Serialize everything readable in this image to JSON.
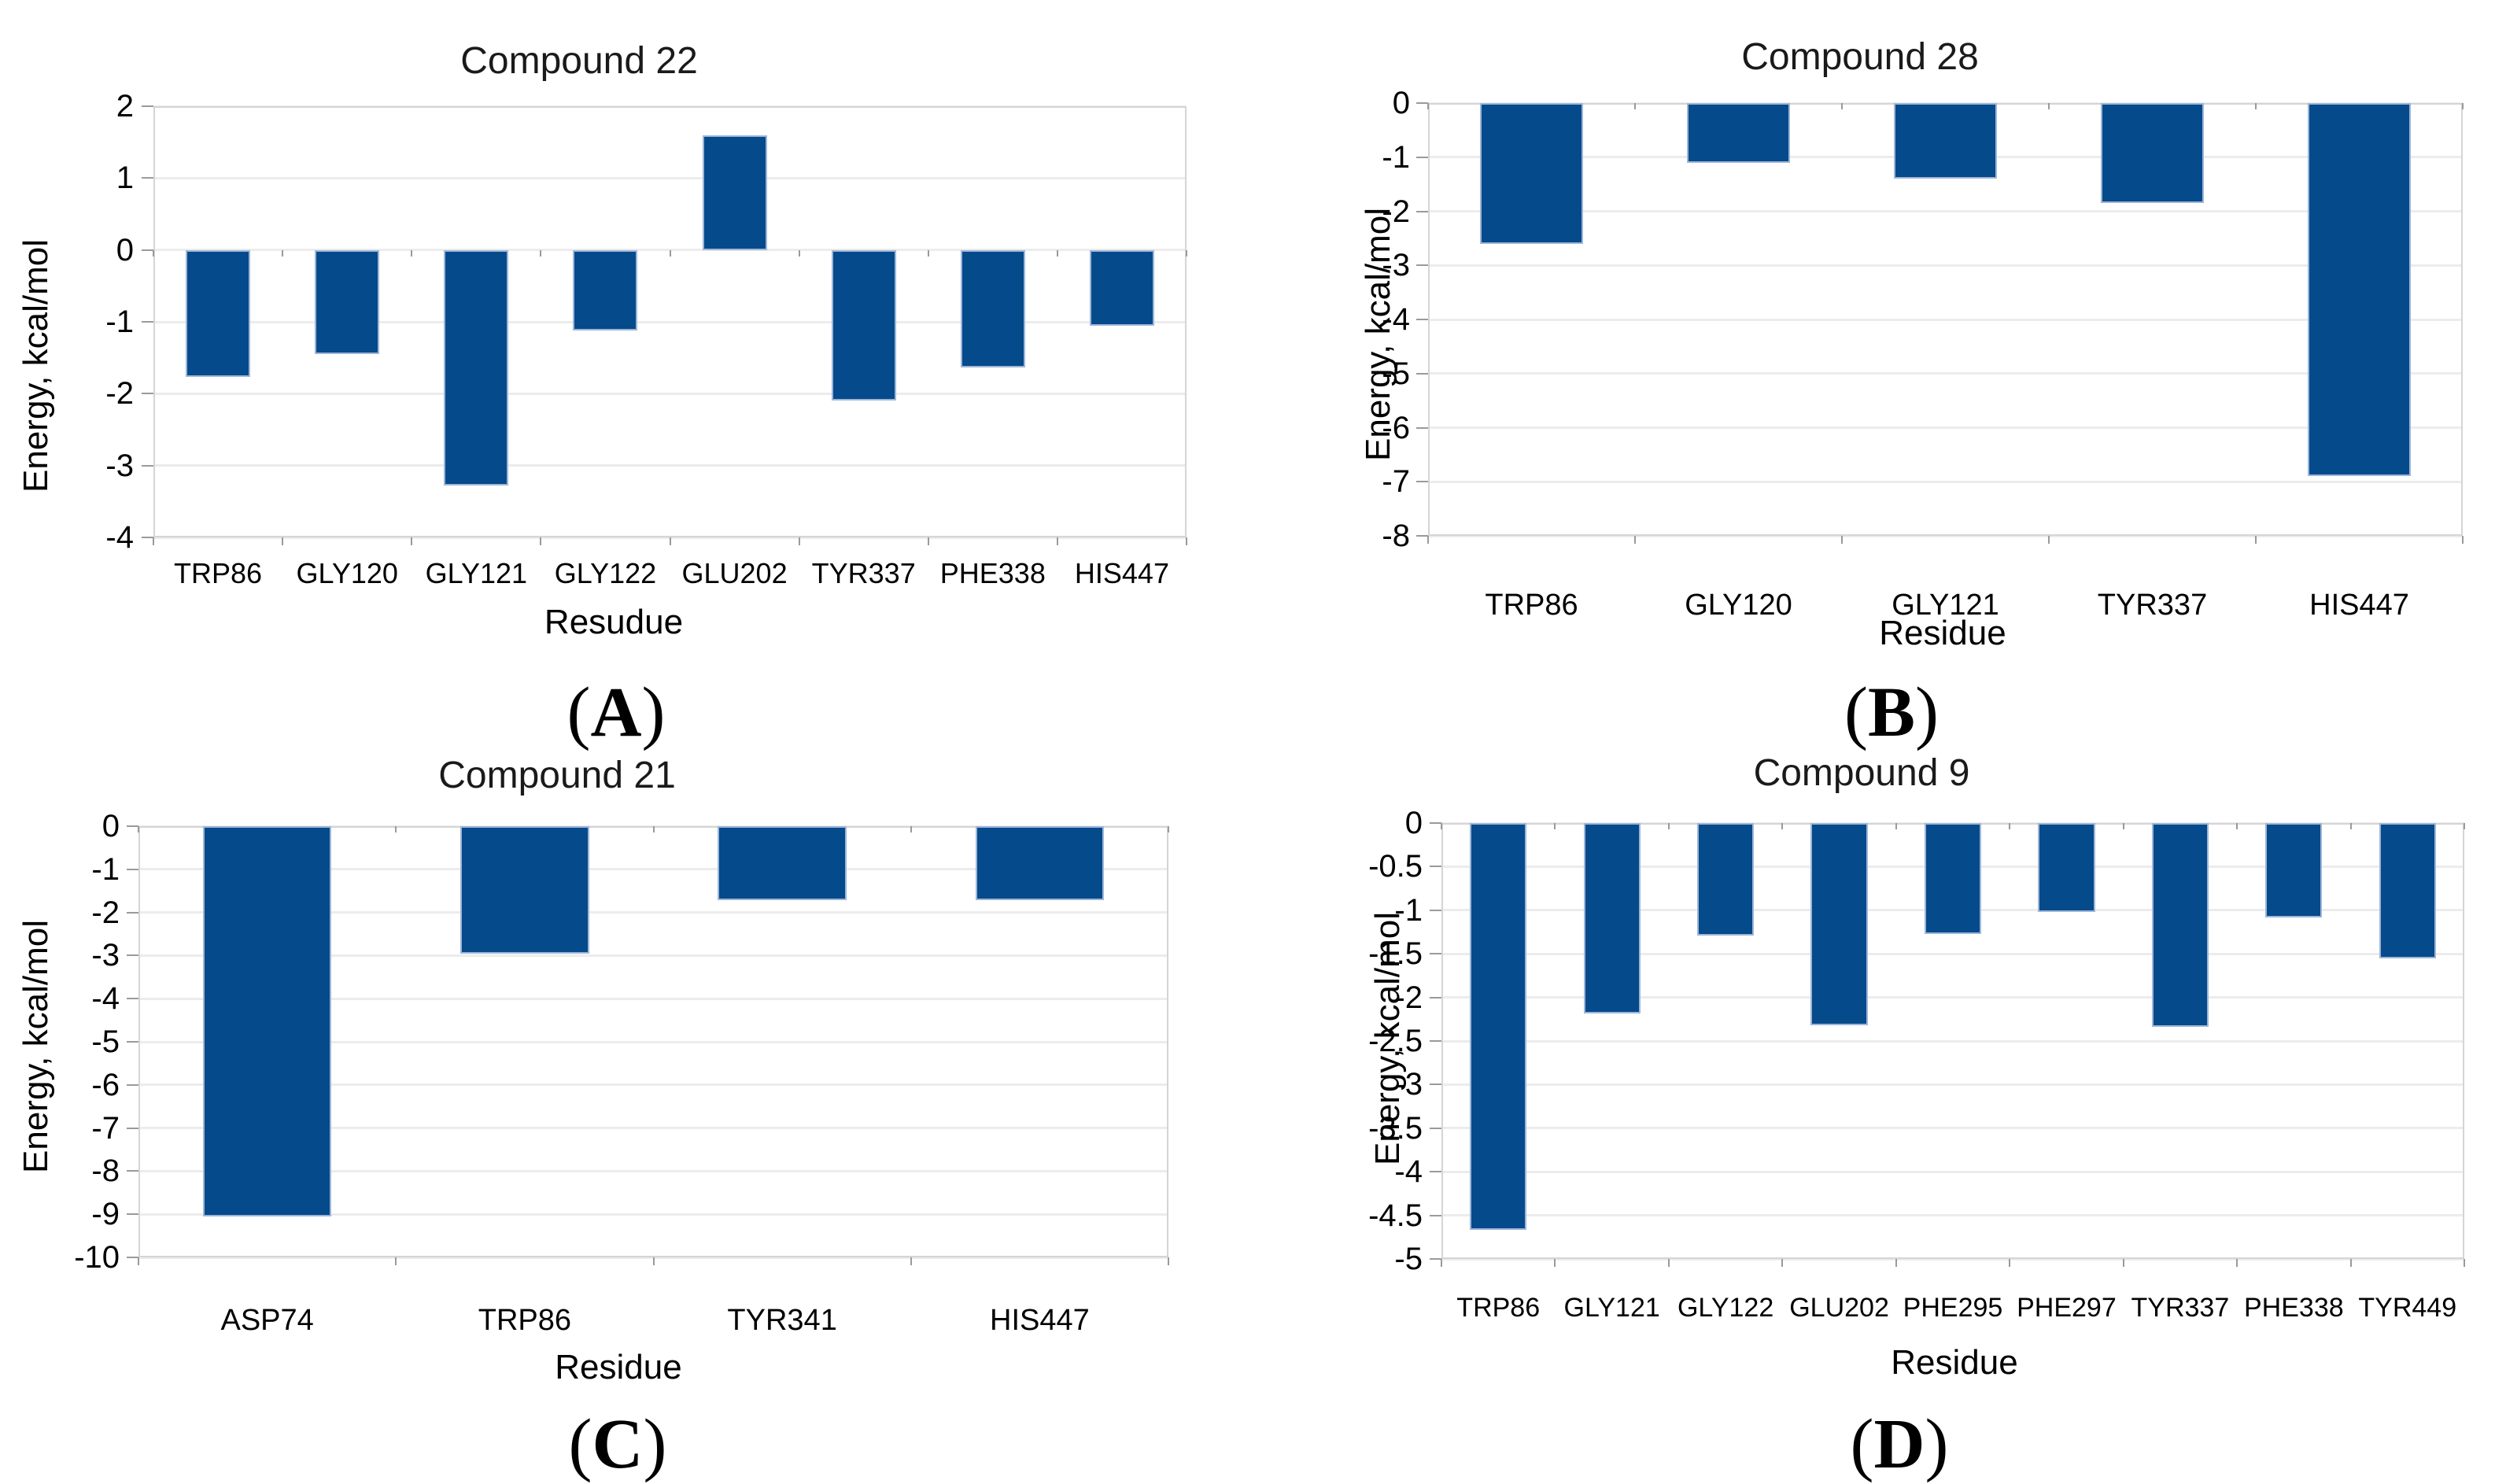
{
  "figure": {
    "background": "#ffffff"
  },
  "colors": {
    "bar_fill": "#054a8b",
    "bar_edge": "#9db6d8",
    "gridline": "#ececec",
    "plot_border": "#d5d5d5",
    "tick_mark": "#9a9a9a",
    "text": "#000000"
  },
  "chart_data": [
    {
      "type": "bar",
      "panel_label": {
        "open": "(",
        "letter": "A",
        "close": ")"
      },
      "title": "Compound 22",
      "xlabel": "Resudue",
      "ylabel": "Energy, kcal/mol",
      "categories": [
        "TRP86",
        "GLY120",
        "GLY121",
        "GLY122",
        "GLU202",
        "TYR337",
        "PHE338",
        "HIS447"
      ],
      "values": [
        -1.77,
        -1.45,
        -3.28,
        -1.12,
        1.6,
        -2.1,
        -1.63,
        -1.06
      ],
      "ylim": [
        2,
        -4
      ],
      "yticks": [
        2,
        1,
        0,
        -1,
        -2,
        -3,
        -4
      ],
      "grid": true,
      "legend": "none"
    },
    {
      "type": "bar",
      "panel_label": {
        "open": "(",
        "letter": "B",
        "close": ")"
      },
      "title": "Compound 28",
      "xlabel": "Residue",
      "ylabel": "Energy, kcal/mol",
      "categories": [
        "TRP86",
        "GLY120",
        "GLY121",
        "TYR337",
        "HIS447"
      ],
      "values": [
        -2.6,
        -1.1,
        -1.4,
        -1.85,
        -6.9
      ],
      "ylim": [
        0,
        -8
      ],
      "yticks": [
        0,
        -1,
        -2,
        -3,
        -4,
        -5,
        -6,
        -7,
        -8
      ],
      "grid": true,
      "legend": "none"
    },
    {
      "type": "bar",
      "panel_label": {
        "open": "(",
        "letter": "C",
        "close": ")"
      },
      "title": "Compound 21",
      "xlabel": "Residue",
      "ylabel": "Energy, kcal/mol",
      "categories": [
        "ASP74",
        "TRP86",
        "TYR341",
        "HIS447"
      ],
      "values": [
        -9.05,
        -2.95,
        -1.72,
        -1.72
      ],
      "ylim": [
        0,
        -10
      ],
      "yticks": [
        0,
        -1,
        -2,
        -3,
        -4,
        -5,
        -6,
        -7,
        -8,
        -9,
        -10
      ],
      "grid": true,
      "legend": "none"
    },
    {
      "type": "bar",
      "panel_label": {
        "open": "(",
        "letter": "D",
        "close": ")"
      },
      "title": "Compound 9",
      "xlabel": "Residue",
      "ylabel": "Energy, kcal/mol",
      "categories": [
        "TRP86",
        "GLY121",
        "GLY122",
        "GLU202",
        "PHE295",
        "PHE297",
        "TYR337",
        "PHE338",
        "TYR449"
      ],
      "values": [
        -4.67,
        -2.18,
        -1.29,
        -2.32,
        -1.27,
        -1.02,
        -2.34,
        -1.08,
        -1.55
      ],
      "ylim": [
        0,
        -5
      ],
      "yticks": [
        0,
        -0.5,
        -1,
        -1.5,
        -2,
        -2.5,
        -3,
        -3.5,
        -4,
        -4.5,
        -5
      ],
      "grid": true,
      "legend": "none"
    }
  ]
}
